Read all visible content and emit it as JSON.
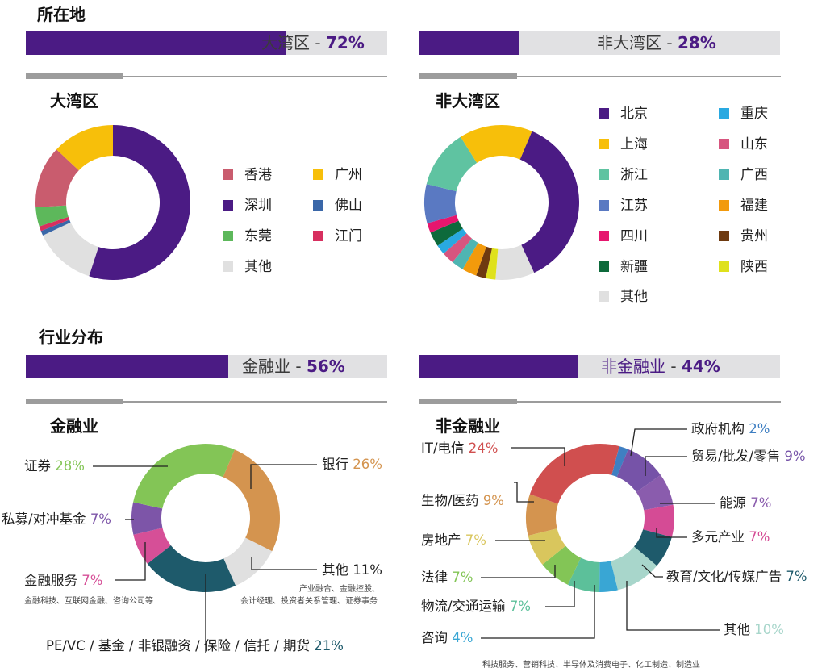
{
  "headings": {
    "location": "所在地",
    "industry": "行业分布"
  },
  "bars": {
    "bay": {
      "label": "大湾区 - ",
      "pct_text": "72%",
      "value": 0.72
    },
    "nonbay": {
      "label": "非大湾区 - ",
      "pct_text": "28%",
      "value": 0.28
    },
    "fin": {
      "label": "金融业 - ",
      "pct_text": "56%",
      "value": 0.56
    },
    "nonfin": {
      "label": "非金融业",
      "sep": " - ",
      "pct_text": "44%",
      "value": 0.44
    }
  },
  "colors": {
    "accent": "#4b1b84",
    "bar_bg": "#e1e1e3",
    "rule": "#9c9c9c"
  },
  "chart_data": [
    {
      "id": "bay",
      "type": "pie",
      "title": "大湾区",
      "legend": "right",
      "series": [
        {
          "name": "深圳",
          "value": 55,
          "color": "#4b1b84"
        },
        {
          "name": "其他",
          "value": 13,
          "color": "#e0e0e0"
        },
        {
          "name": "佛山",
          "value": 1,
          "color": "#3a67a8"
        },
        {
          "name": "江门",
          "value": 1,
          "color": "#d72f5f"
        },
        {
          "name": "东莞",
          "value": 4,
          "color": "#5db85b"
        },
        {
          "name": "香港",
          "value": 13,
          "color": "#c95c6e"
        },
        {
          "name": "广州",
          "value": 13,
          "color": "#f7bf0a"
        }
      ],
      "legend_order": [
        "香港",
        "广州",
        "深圳",
        "佛山",
        "东莞",
        "江门",
        "其他"
      ]
    },
    {
      "id": "nonbay",
      "type": "pie",
      "title": "非大湾区",
      "legend": "right",
      "series": [
        {
          "name": "北京",
          "value": 36,
          "color": "#4b1b84"
        },
        {
          "name": "其他",
          "value": 8,
          "color": "#e0e0e0"
        },
        {
          "name": "陕西",
          "value": 2,
          "color": "#dfe11c"
        },
        {
          "name": "贵州",
          "value": 2,
          "color": "#6e3a10"
        },
        {
          "name": "福建",
          "value": 3,
          "color": "#f29a0c"
        },
        {
          "name": "广西",
          "value": 2.5,
          "color": "#4fb5b2"
        },
        {
          "name": "山东",
          "value": 2.5,
          "color": "#d7557f"
        },
        {
          "name": "重庆",
          "value": 2,
          "color": "#29a9e1"
        },
        {
          "name": "新疆",
          "value": 3,
          "color": "#0d6a3b"
        },
        {
          "name": "四川",
          "value": 2,
          "color": "#e6166e"
        },
        {
          "name": "江苏",
          "value": 8,
          "color": "#5a79c2"
        },
        {
          "name": "浙江",
          "value": 12,
          "color": "#5fc3a1"
        },
        {
          "name": "上海",
          "value": 15,
          "color": "#f7bf0a"
        }
      ],
      "legend_order": [
        "北京",
        "重庆",
        "上海",
        "山东",
        "浙江",
        "广西",
        "江苏",
        "福建",
        "四川",
        "贵州",
        "新疆",
        "陕西",
        "其他"
      ]
    },
    {
      "id": "fin",
      "type": "pie",
      "title": "金融业",
      "series": [
        {
          "name": "银行",
          "value": 26,
          "pct": "26%",
          "color": "#d4944f"
        },
        {
          "name": "其他",
          "value": 11,
          "pct": "11%",
          "color": "#e0e0e0"
        },
        {
          "name": "PE/VC / 基金 / 非银融资 / 保险 / 信托 / 期货",
          "value": 21,
          "pct": "21%",
          "color": "#1e5a6b"
        },
        {
          "name": "金融服务",
          "value": 7,
          "pct": "7%",
          "color": "#d64f97"
        },
        {
          "name": "私募/对冲基金",
          "value": 7,
          "pct": "7%",
          "color": "#7d55a8"
        },
        {
          "name": "证券",
          "value": 28,
          "pct": "28%",
          "color": "#83c556"
        }
      ],
      "notes": {
        "other": [
          "产业融合、金融控股、",
          "会计经理、投资者关系管理、证券事务"
        ],
        "services": "金融科技、互联网金融、咨询公司等"
      }
    },
    {
      "id": "nonfin",
      "type": "pie",
      "title": "非金融业",
      "series": [
        {
          "name": "政府机构",
          "value": 2,
          "pct": "2%",
          "color": "#3f7fc2"
        },
        {
          "name": "贸易/批发/零售",
          "value": 9,
          "pct": "9%",
          "color": "#7653a8"
        },
        {
          "name": "能源",
          "value": 7,
          "pct": "7%",
          "color": "#8a5cad"
        },
        {
          "name": "多元产业",
          "value": 7,
          "pct": "7%",
          "color": "#d54b95"
        },
        {
          "name": "教育/文化/传媒广告",
          "value": 7,
          "pct": "7%",
          "color": "#1e5a6b"
        },
        {
          "name": "其他",
          "value": 10,
          "pct": "10%",
          "color": "#a8d6cb"
        },
        {
          "name": "咨询",
          "value": 4,
          "pct": "4%",
          "color": "#39a6d4"
        },
        {
          "name": "物流/交通运输",
          "value": 7,
          "pct": "7%",
          "color": "#5cc09a"
        },
        {
          "name": "法律",
          "value": 7,
          "pct": "7%",
          "color": "#83c556"
        },
        {
          "name": "房地产",
          "value": 7,
          "pct": "7%",
          "color": "#d9c65d"
        },
        {
          "name": "生物/医药",
          "value": 9,
          "pct": "9%",
          "color": "#d4944f"
        },
        {
          "name": "IT/电信",
          "value": 24,
          "pct": "24%",
          "color": "#d04f4f"
        }
      ],
      "notes": {
        "other": "科技服务、营销科技、半导体及消费电子、化工制造、制造业"
      }
    }
  ]
}
